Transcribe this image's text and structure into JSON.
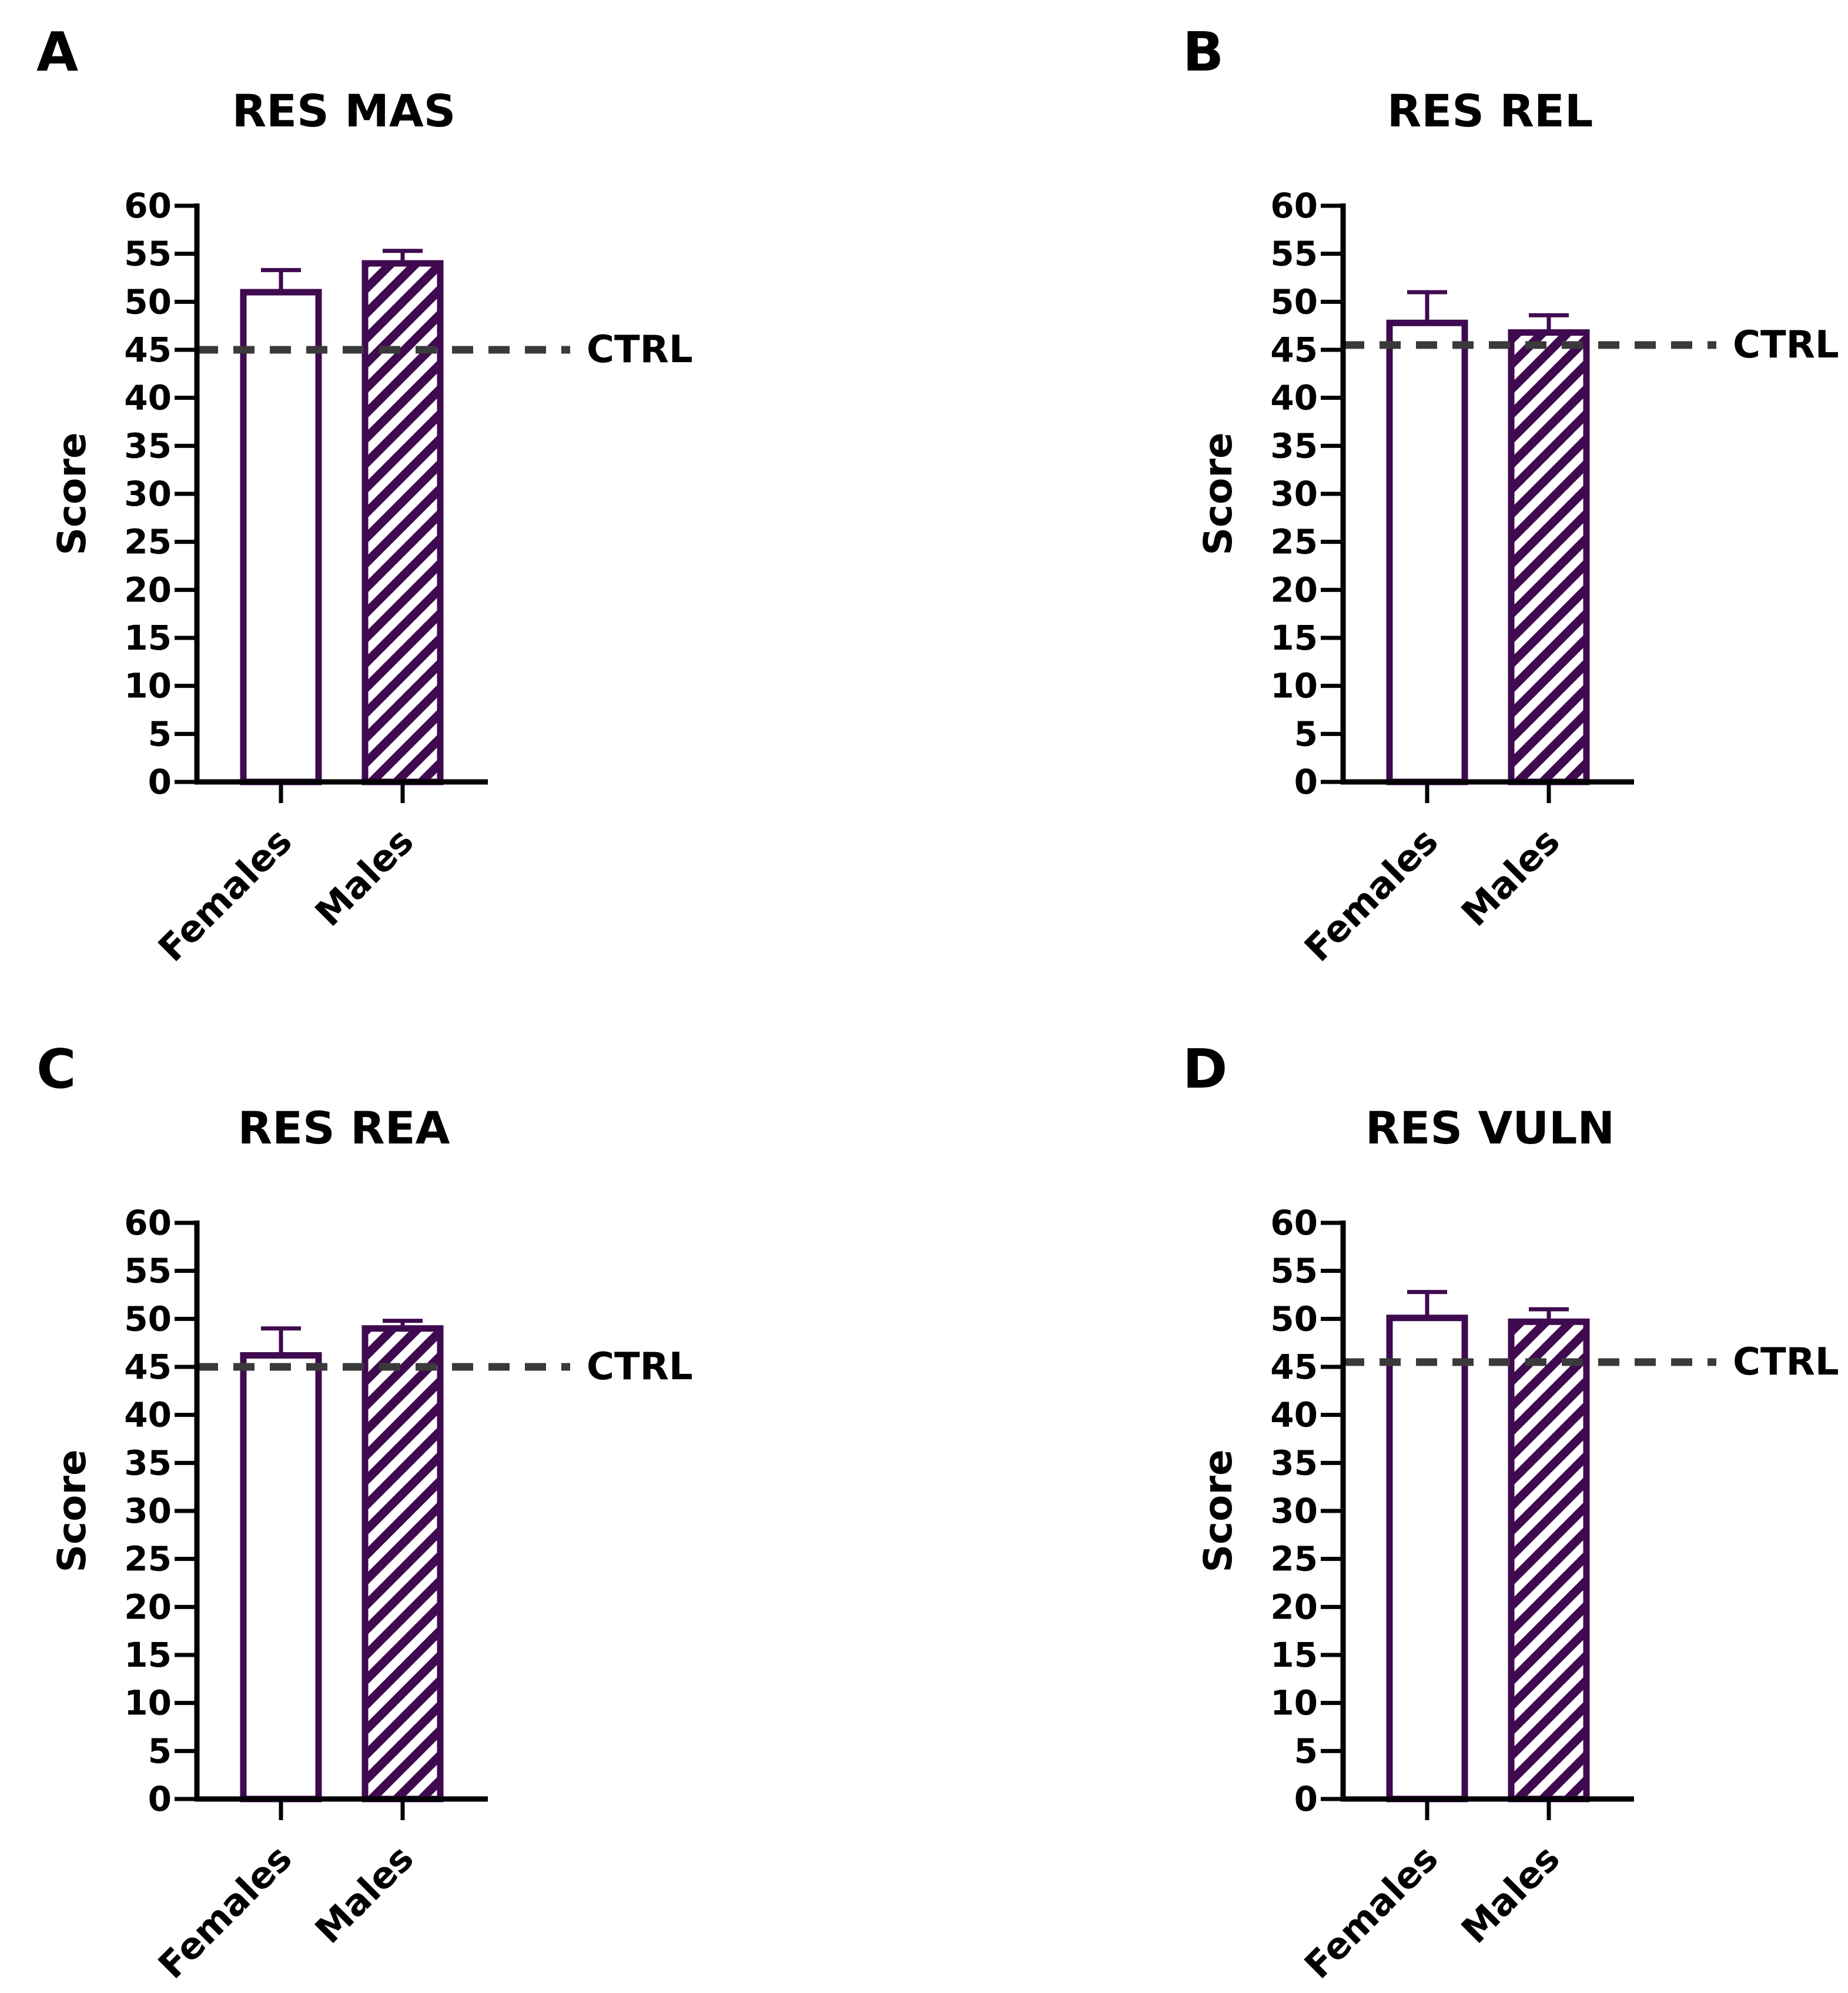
{
  "colors": {
    "bar_stroke": "#3f0a4f",
    "hatch": "#3f0a4f",
    "axis": "#000000",
    "reference_line": "#3a3a3a",
    "text": "#000000"
  },
  "chart_data": [
    {
      "panel_letter": "A",
      "type": "bar",
      "title": "RES MAS",
      "ylabel": "Score",
      "xlabel": "",
      "categories": [
        "Females",
        "Males"
      ],
      "patterns": [
        "open",
        "hatched"
      ],
      "values": [
        51,
        54
      ],
      "error_upper": [
        53.3,
        55.3
      ],
      "ylim": [
        0,
        60
      ],
      "y_ticks": [
        0,
        5,
        10,
        15,
        20,
        25,
        30,
        35,
        40,
        45,
        50,
        55,
        60
      ],
      "reference_line": {
        "value": 45,
        "label": "CTRL",
        "style": "dashed"
      }
    },
    {
      "panel_letter": "B",
      "type": "bar",
      "title": "RES REL",
      "ylabel": "Score",
      "xlabel": "",
      "categories": [
        "Females",
        "Males"
      ],
      "patterns": [
        "open",
        "hatched"
      ],
      "values": [
        47.8,
        46.8
      ],
      "error_upper": [
        51,
        48.6
      ],
      "ylim": [
        0,
        60
      ],
      "y_ticks": [
        0,
        5,
        10,
        15,
        20,
        25,
        30,
        35,
        40,
        45,
        50,
        55,
        60
      ],
      "reference_line": {
        "value": 45.5,
        "label": "CTRL",
        "style": "dashed"
      }
    },
    {
      "panel_letter": "C",
      "type": "bar",
      "title": "RES REA",
      "ylabel": "Score",
      "xlabel": "",
      "categories": [
        "Females",
        "Males"
      ],
      "patterns": [
        "open",
        "hatched"
      ],
      "values": [
        46.2,
        49
      ],
      "error_upper": [
        49,
        49.8
      ],
      "ylim": [
        0,
        60
      ],
      "y_ticks": [
        0,
        5,
        10,
        15,
        20,
        25,
        30,
        35,
        40,
        45,
        50,
        55,
        60
      ],
      "reference_line": {
        "value": 45,
        "label": "CTRL",
        "style": "dashed"
      }
    },
    {
      "panel_letter": "D",
      "type": "bar",
      "title": "RES VULN",
      "ylabel": "Score",
      "xlabel": "",
      "categories": [
        "Females",
        "Males"
      ],
      "patterns": [
        "open",
        "hatched"
      ],
      "values": [
        50.1,
        49.7
      ],
      "error_upper": [
        52.8,
        51
      ],
      "ylim": [
        0,
        60
      ],
      "y_ticks": [
        0,
        5,
        10,
        15,
        20,
        25,
        30,
        35,
        40,
        45,
        50,
        55,
        60
      ],
      "reference_line": {
        "value": 45.5,
        "label": "CTRL",
        "style": "dashed"
      }
    }
  ]
}
